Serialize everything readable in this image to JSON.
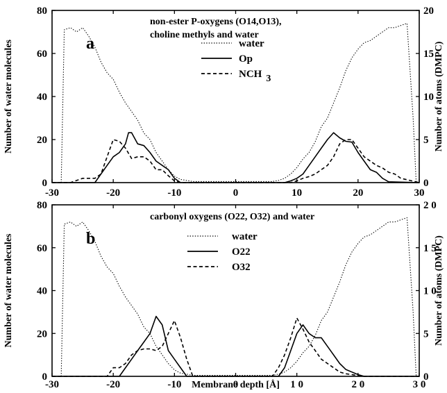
{
  "chart_data": [
    {
      "type": "line",
      "panel_label": "a",
      "annotation": [
        "non-ester  P-oxygens (O14,O13),",
        "choline methyls and water"
      ],
      "xlabel": "",
      "ylabel_left": "Number of water molecules",
      "ylabel_right": "Number of atoms (DMPC)",
      "xlim": [
        -30,
        30
      ],
      "ylim_left": [
        0,
        80
      ],
      "ylim_right": [
        0,
        20
      ],
      "xticks": [
        -30,
        -20,
        -10,
        0,
        10,
        20,
        30
      ],
      "yticks_left": [
        0,
        20,
        40,
        60,
        80
      ],
      "yticks_right": [
        0,
        5,
        10,
        15,
        20
      ],
      "xtick_labels": [
        "-30",
        "-20",
        "-10",
        "0",
        "10",
        "20",
        "30"
      ],
      "ytick_left_labels": [
        "0",
        "20",
        "40",
        "60",
        "80"
      ],
      "ytick_right_labels": [
        "0",
        "5",
        "10",
        "15",
        "20"
      ],
      "legend": [
        {
          "label": "water",
          "style": "dotted"
        },
        {
          "label": "Op",
          "style": "solid"
        },
        {
          "label": "NCH",
          "sub": "3",
          "style": "dashed"
        }
      ],
      "series": [
        {
          "name": "water",
          "axis": "left",
          "style": "dotted",
          "x": [
            -28.5,
            -28,
            -27,
            -26,
            -25,
            -24,
            -23,
            -22,
            -21,
            -20,
            -19,
            -18,
            -17,
            -16,
            -15,
            -14,
            -13,
            -12,
            -11,
            -10,
            -9,
            -8,
            -7,
            -6,
            -4,
            -2,
            0,
            2,
            4,
            6,
            7,
            8,
            9,
            10,
            11,
            12,
            13,
            14,
            15,
            16,
            17,
            18,
            19,
            20,
            21,
            22,
            23,
            24,
            25,
            26,
            27,
            28,
            29,
            29.5
          ],
          "y": [
            0,
            71,
            72,
            70,
            72,
            68,
            63,
            56,
            51,
            48,
            42,
            37,
            33,
            29,
            23,
            20,
            14,
            10,
            6,
            3,
            1.5,
            1,
            0.5,
            0.5,
            0.5,
            0.5,
            0.5,
            0.5,
            0.5,
            0.5,
            1,
            2,
            4,
            7,
            11,
            14,
            19,
            26,
            30,
            37,
            44,
            52,
            58,
            62,
            65,
            66,
            68,
            70,
            72,
            72,
            73,
            74,
            30,
            0
          ]
        },
        {
          "name": "Op",
          "axis": "right",
          "style": "solid",
          "x": [
            -30,
            -23,
            -21,
            -20,
            -19,
            -18,
            -17.5,
            -17,
            -16,
            -15,
            -14,
            -13,
            -12,
            -11,
            -10,
            -9,
            0,
            8,
            9,
            10,
            11,
            12,
            13,
            14,
            15,
            16,
            17,
            18,
            19,
            20,
            21,
            22,
            23,
            24,
            25,
            30
          ],
          "y": [
            0,
            0,
            2,
            3,
            3.5,
            4.5,
            5.8,
            5.8,
            4.5,
            4.3,
            3.5,
            2.5,
            2,
            1.5,
            0.5,
            0,
            0,
            0,
            0.2,
            0.5,
            1,
            2,
            3,
            4,
            5,
            5.8,
            5.2,
            4.8,
            4.7,
            3.5,
            2.5,
            1.5,
            1.2,
            0.5,
            0.1,
            0
          ]
        },
        {
          "name": "NCH3",
          "axis": "right",
          "style": "dashed",
          "x": [
            -30,
            -27,
            -25,
            -23,
            -22,
            -21,
            -20,
            -19,
            -18,
            -17,
            -16,
            -15,
            -14,
            -13,
            -12,
            -11,
            -10,
            -9,
            0,
            9,
            10,
            11,
            12,
            13,
            14,
            15,
            16,
            17,
            18,
            19,
            20,
            21,
            22,
            23,
            24,
            25,
            26,
            27,
            30
          ],
          "y": [
            0,
            0,
            0.5,
            0.5,
            1,
            3,
            5,
            4.8,
            4,
            2.8,
            3,
            3,
            2.5,
            1.5,
            1.5,
            0.8,
            0.2,
            0,
            0,
            0,
            0.2,
            0.5,
            0.7,
            1,
            1.5,
            2,
            3,
            4.5,
            5,
            5,
            4,
            3,
            2.5,
            2,
            1.7,
            1.2,
            1,
            0.5,
            0
          ]
        }
      ]
    },
    {
      "type": "line",
      "panel_label": "b",
      "annotation": [
        "carbonyl oxygens (O22, O32) and water"
      ],
      "xlabel": "Membrane depth [Å]",
      "ylabel_left": "Number of water molecules",
      "ylabel_right": "Number of atoms (DMPC)",
      "xlim": [
        -30,
        30
      ],
      "ylim_left": [
        0,
        80
      ],
      "ylim_right": [
        0,
        20
      ],
      "xticks": [
        -30,
        -20,
        -10,
        0,
        10,
        20,
        30
      ],
      "yticks_left": [
        0,
        20,
        40,
        60,
        80
      ],
      "yticks_right": [
        0,
        5,
        10,
        15,
        20
      ],
      "xtick_labels": [
        "-30",
        "-20",
        "-10",
        "0",
        "1 0",
        "2 0",
        "3 0"
      ],
      "ytick_left_labels": [
        "0",
        "20",
        "40",
        "60",
        "80"
      ],
      "ytick_right_labels": [
        "0",
        "5",
        "1 0",
        "1 5",
        "2 0"
      ],
      "legend": [
        {
          "label": "water",
          "style": "dotted"
        },
        {
          "label": "O22",
          "style": "solid"
        },
        {
          "label": "O32",
          "style": "dashed"
        }
      ],
      "series": [
        {
          "name": "water",
          "axis": "left",
          "style": "dotted",
          "x": [
            -28.5,
            -28,
            -27,
            -26,
            -25,
            -24,
            -23,
            -22,
            -21,
            -20,
            -19,
            -18,
            -17,
            -16,
            -15,
            -14,
            -13,
            -12,
            -11,
            -10,
            -9,
            -8,
            -7,
            -6,
            -4,
            -2,
            0,
            2,
            4,
            6,
            7,
            8,
            9,
            10,
            11,
            12,
            13,
            14,
            15,
            16,
            17,
            18,
            19,
            20,
            21,
            22,
            23,
            24,
            25,
            26,
            27,
            28,
            29,
            29.5
          ],
          "y": [
            0,
            71,
            72,
            70,
            72,
            68,
            63,
            56,
            51,
            48,
            42,
            37,
            33,
            29,
            23,
            20,
            14,
            10,
            6,
            3,
            1.5,
            1,
            0.5,
            0.5,
            0.5,
            0.5,
            0.5,
            0.5,
            0.5,
            0.5,
            1,
            2,
            4,
            7,
            11,
            14,
            19,
            26,
            30,
            37,
            44,
            52,
            58,
            62,
            65,
            66,
            68,
            70,
            72,
            72,
            73,
            74,
            30,
            0
          ]
        },
        {
          "name": "O22",
          "axis": "right",
          "style": "solid",
          "x": [
            -30,
            -19,
            -18,
            -17,
            -16,
            -15,
            -14,
            -13,
            -12,
            -11,
            -10,
            -9,
            -8,
            0,
            7,
            8,
            9,
            10,
            11,
            12,
            13,
            14,
            15,
            16,
            17,
            18,
            19,
            20,
            21,
            30
          ],
          "y": [
            0,
            0,
            1,
            2,
            3,
            4,
            5,
            7,
            6,
            3,
            2,
            1,
            0,
            0,
            0,
            1,
            3,
            5,
            6,
            5,
            4.5,
            4.5,
            3.5,
            2.5,
            1.5,
            0.8,
            0.5,
            0.2,
            0,
            0
          ]
        },
        {
          "name": "O32",
          "axis": "right",
          "style": "dashed",
          "x": [
            -30,
            -21,
            -20,
            -19,
            -18,
            -17,
            -16,
            -15,
            -14,
            -13,
            -12,
            -11,
            -10,
            -9,
            -8,
            -7,
            0,
            6,
            7,
            8,
            9,
            10,
            11,
            12,
            13,
            14,
            15,
            16,
            17,
            18,
            19,
            20,
            21,
            30
          ],
          "y": [
            0,
            0,
            1,
            1,
            1.5,
            2.5,
            3,
            3.2,
            3.2,
            3,
            3.5,
            5,
            6.5,
            4.5,
            2,
            0,
            0,
            0,
            1,
            2.5,
            4.5,
            6.8,
            5.5,
            4,
            3,
            2,
            1.5,
            1,
            0.5,
            0.3,
            0.2,
            0.1,
            0,
            0
          ]
        }
      ]
    }
  ]
}
